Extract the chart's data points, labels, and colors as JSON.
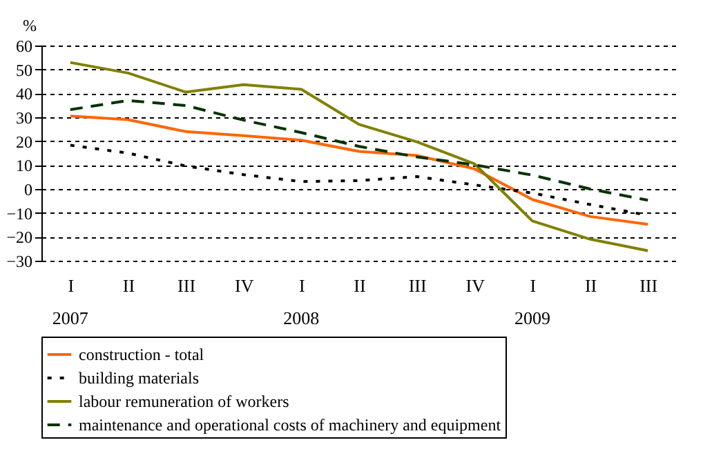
{
  "chart_data": {
    "type": "line",
    "ylabel": "%",
    "categories": [
      "I",
      "II",
      "III",
      "IV",
      "I",
      "II",
      "III",
      "IV",
      "I",
      "II",
      "III"
    ],
    "annotations": [
      "2007",
      "2008",
      "2009"
    ],
    "ylim": [
      -30,
      60
    ],
    "yticks": [
      -30,
      -20,
      -10,
      0,
      10,
      20,
      30,
      40,
      50,
      60
    ],
    "grid": "y",
    "legend": "bottom",
    "series": [
      {
        "name": "construction - total",
        "color": "#ff6600",
        "line_style": "solid",
        "values": [
          30.5,
          29,
          24,
          22.3,
          20.4,
          15.7,
          14,
          8.4,
          -4.4,
          -11.5,
          -14.8
        ]
      },
      {
        "name": "building materials",
        "color": "#000000",
        "line_style": "dotted",
        "values": [
          18.3,
          15,
          9.6,
          6,
          3.1,
          3.5,
          5.2,
          1.7,
          -1.7,
          -6.5,
          -11
        ]
      },
      {
        "name": "labour remuneration of workers",
        "color": "#808000",
        "line_style": "solid",
        "values": [
          52.9,
          48.5,
          40.5,
          43.6,
          41.7,
          27,
          19.7,
          10.5,
          -13.4,
          -21,
          -25.8
        ]
      },
      {
        "name": "maintenance and operational costs of machinery and equipment",
        "color": "#003300",
        "line_style": "dashed",
        "values": [
          33.2,
          37,
          34.9,
          28.8,
          23.6,
          17.8,
          13.4,
          10.1,
          5.8,
          0,
          -4.7
        ]
      }
    ]
  }
}
